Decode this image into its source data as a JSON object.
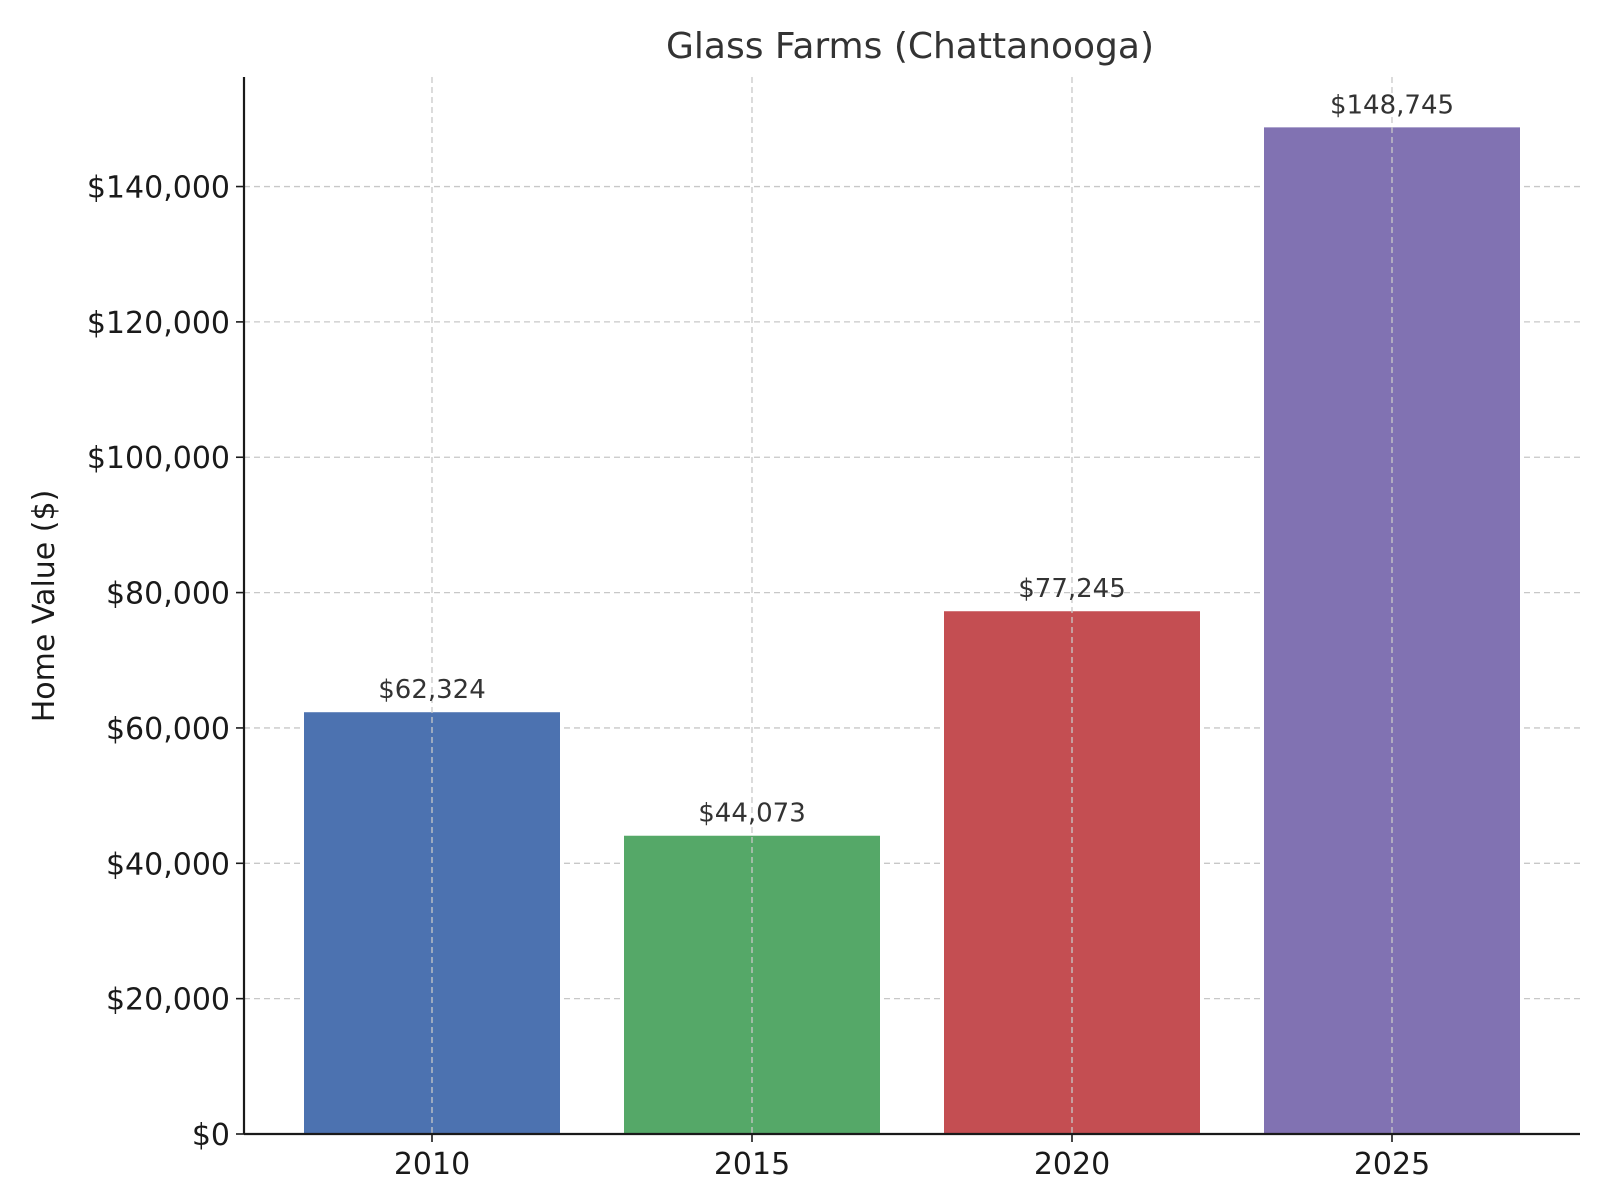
{
  "chart_data": {
    "type": "bar",
    "title": "Glass Farms (Chattanooga)",
    "xlabel": "",
    "ylabel": "Home Value ($)",
    "categories": [
      "2010",
      "2015",
      "2020",
      "2025"
    ],
    "values": [
      62324,
      44073,
      77245,
      148745
    ],
    "value_labels": [
      "$62,324",
      "$44,073",
      "$77,245",
      "$148,745"
    ],
    "colors": [
      "#4c72b0",
      "#55a868",
      "#c44e52",
      "#8172b2"
    ],
    "ylim": [
      0,
      156187
    ],
    "yticks": [
      0,
      20000,
      40000,
      60000,
      80000,
      100000,
      120000,
      140000
    ],
    "ytick_labels": [
      "$0",
      "$20,000",
      "$40,000",
      "$60,000",
      "$80,000",
      "$100,000",
      "$120,000",
      "$140,000"
    ],
    "grid": true,
    "legend": "none"
  }
}
